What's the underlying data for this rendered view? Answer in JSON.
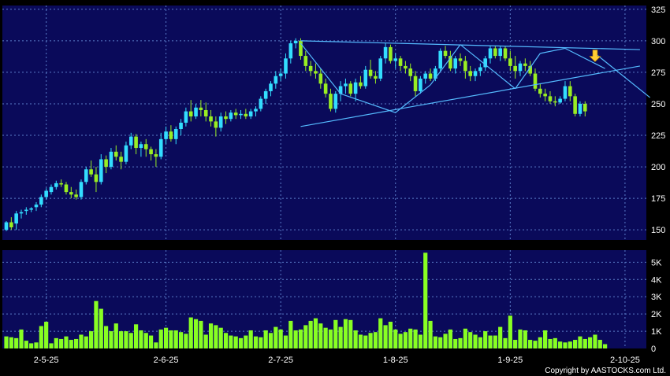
{
  "copyright": "Copyright by AASTOCKS.com Ltd.",
  "colors": {
    "panel_bg": "#0a0a5a",
    "grid": "#5a7cc8",
    "up_candle": "#33ddff",
    "down_candle": "#99ee22",
    "volume": "#88ff22",
    "trendline": "#55bbff",
    "arrow": "#ffcc33",
    "text": "#ffffff"
  },
  "chart_data": [
    {
      "type": "candlestick",
      "title": "",
      "y_ticks": [
        "325",
        "300",
        "275",
        "250",
        "225",
        "200",
        "175",
        "150"
      ],
      "ylim": [
        142,
        328
      ],
      "x_ticks": [
        {
          "label": "2-5-25",
          "index": 8
        },
        {
          "label": "2-6-25",
          "index": 32
        },
        {
          "label": "2-7-25",
          "index": 55
        },
        {
          "label": "1-8-25",
          "index": 78
        },
        {
          "label": "1-9-25",
          "index": 101
        },
        {
          "label": "2-10-25",
          "index": 124
        }
      ],
      "grid": true,
      "candles_ohlc": [
        [
          150,
          157,
          149,
          156
        ],
        [
          156,
          160,
          150,
          152
        ],
        [
          155,
          165,
          150,
          163
        ],
        [
          163,
          166,
          159,
          164
        ],
        [
          165,
          168,
          162,
          166
        ],
        [
          166,
          168,
          164,
          167
        ],
        [
          168,
          172,
          165,
          170
        ],
        [
          170,
          178,
          168,
          176
        ],
        [
          176,
          183,
          174,
          181
        ],
        [
          180,
          186,
          178,
          184
        ],
        [
          184,
          189,
          182,
          187
        ],
        [
          187,
          190,
          184,
          186
        ],
        [
          186,
          188,
          178,
          180
        ],
        [
          180,
          184,
          175,
          178
        ],
        [
          178,
          182,
          174,
          176
        ],
        [
          176,
          190,
          174,
          188
        ],
        [
          188,
          200,
          186,
          198
        ],
        [
          198,
          205,
          192,
          194
        ],
        [
          194,
          200,
          180,
          188
        ],
        [
          188,
          210,
          186,
          206
        ],
        [
          206,
          209,
          195,
          200
        ],
        [
          200,
          215,
          198,
          212
        ],
        [
          212,
          217,
          205,
          208
        ],
        [
          208,
          212,
          198,
          204
        ],
        [
          204,
          220,
          202,
          217
        ],
        [
          217,
          227,
          214,
          224
        ],
        [
          224,
          226,
          210,
          215
        ],
        [
          215,
          220,
          208,
          218
        ],
        [
          218,
          222,
          208,
          214
        ],
        [
          214,
          216,
          205,
          210
        ],
        [
          210,
          214,
          200,
          208
        ],
        [
          208,
          227,
          206,
          222
        ],
        [
          222,
          232,
          218,
          228
        ],
        [
          228,
          233,
          220,
          222
        ],
        [
          222,
          232,
          218,
          230
        ],
        [
          230,
          238,
          225,
          235
        ],
        [
          235,
          247,
          232,
          244
        ],
        [
          244,
          253,
          236,
          240
        ],
        [
          240,
          250,
          238,
          247
        ],
        [
          247,
          253,
          240,
          245
        ],
        [
          245,
          251,
          236,
          240
        ],
        [
          240,
          245,
          232,
          236
        ],
        [
          236,
          240,
          224,
          231
        ],
        [
          231,
          243,
          228,
          240
        ],
        [
          240,
          244,
          234,
          238
        ],
        [
          238,
          245,
          236,
          243
        ],
        [
          243,
          246,
          238,
          241
        ],
        [
          241,
          245,
          238,
          242
        ],
        [
          242,
          246,
          238,
          240
        ],
        [
          240,
          246,
          238,
          244
        ],
        [
          244,
          248,
          240,
          246
        ],
        [
          246,
          256,
          244,
          254
        ],
        [
          254,
          262,
          250,
          260
        ],
        [
          260,
          268,
          256,
          266
        ],
        [
          266,
          276,
          262,
          272
        ],
        [
          272,
          278,
          268,
          274
        ],
        [
          274,
          290,
          270,
          286
        ],
        [
          286,
          300,
          282,
          298
        ],
        [
          298,
          302,
          294,
          300
        ],
        [
          300,
          302,
          285,
          288
        ],
        [
          288,
          292,
          276,
          280
        ],
        [
          280,
          284,
          272,
          276
        ],
        [
          276,
          282,
          270,
          274
        ],
        [
          274,
          278,
          262,
          266
        ],
        [
          266,
          270,
          255,
          258
        ],
        [
          258,
          262,
          244,
          246
        ],
        [
          246,
          260,
          243,
          258
        ],
        [
          258,
          268,
          252,
          264
        ],
        [
          264,
          270,
          258,
          266
        ],
        [
          266,
          268,
          256,
          258
        ],
        [
          258,
          270,
          252,
          267
        ],
        [
          267,
          272,
          262,
          264
        ],
        [
          264,
          280,
          262,
          277
        ],
        [
          277,
          285,
          270,
          272
        ],
        [
          272,
          276,
          266,
          270
        ],
        [
          270,
          288,
          268,
          286
        ],
        [
          286,
          298,
          282,
          295
        ],
        [
          295,
          297,
          282,
          284
        ],
        [
          284,
          290,
          278,
          286
        ],
        [
          286,
          288,
          276,
          280
        ],
        [
          280,
          284,
          274,
          278
        ],
        [
          278,
          282,
          268,
          272
        ],
        [
          272,
          276,
          256,
          260
        ],
        [
          260,
          272,
          258,
          270
        ],
        [
          270,
          276,
          266,
          274
        ],
        [
          274,
          278,
          268,
          270
        ],
        [
          270,
          280,
          268,
          278
        ],
        [
          278,
          294,
          276,
          292
        ],
        [
          292,
          296,
          286,
          288
        ],
        [
          288,
          292,
          276,
          278
        ],
        [
          278,
          288,
          274,
          286
        ],
        [
          286,
          290,
          280,
          284
        ],
        [
          284,
          288,
          270,
          276
        ],
        [
          276,
          280,
          268,
          272
        ],
        [
          272,
          278,
          268,
          276
        ],
        [
          276,
          282,
          272,
          279
        ],
        [
          279,
          288,
          276,
          286
        ],
        [
          286,
          296,
          282,
          294
        ],
        [
          294,
          296,
          286,
          288
        ],
        [
          288,
          296,
          284,
          294
        ],
        [
          294,
          296,
          284,
          286
        ],
        [
          286,
          292,
          276,
          280
        ],
        [
          280,
          288,
          270,
          276
        ],
        [
          276,
          284,
          272,
          282
        ],
        [
          282,
          286,
          276,
          280
        ],
        [
          280,
          284,
          272,
          274
        ],
        [
          274,
          278,
          260,
          262
        ],
        [
          262,
          266,
          255,
          258
        ],
        [
          258,
          262,
          252,
          256
        ],
        [
          256,
          260,
          250,
          252
        ],
        [
          252,
          256,
          248,
          251
        ],
        [
          251,
          256,
          250,
          254
        ],
        [
          254,
          268,
          252,
          264
        ],
        [
          264,
          268,
          252,
          256
        ],
        [
          256,
          258,
          240,
          242
        ],
        [
          242,
          252,
          240,
          250
        ],
        [
          250,
          252,
          240,
          244
        ]
      ],
      "annotations": [
        {
          "type": "trendline",
          "from": [
            59,
            300
          ],
          "to": [
            127,
            293
          ]
        },
        {
          "type": "trendline",
          "from": [
            59,
            298
          ],
          "to": [
            67,
            258
          ]
        },
        {
          "type": "trendline",
          "from": [
            67,
            258
          ],
          "to": [
            78,
            243
          ]
        },
        {
          "type": "trendline",
          "from": [
            78,
            243
          ],
          "to": [
            85,
            265
          ]
        },
        {
          "type": "trendline",
          "from": [
            85,
            265
          ],
          "to": [
            91,
            297
          ]
        },
        {
          "type": "trendline",
          "from": [
            91,
            297
          ],
          "to": [
            102,
            262
          ]
        },
        {
          "type": "trendline",
          "from": [
            102,
            262
          ],
          "to": [
            107,
            290
          ]
        },
        {
          "type": "trendline",
          "from": [
            107,
            290
          ],
          "to": [
            112,
            294
          ]
        },
        {
          "type": "trendline",
          "from": [
            112,
            294
          ],
          "to": [
            120,
            278
          ]
        },
        {
          "type": "trendline",
          "from": [
            118,
            290
          ],
          "to": [
            129,
            255
          ]
        },
        {
          "type": "trendline",
          "from": [
            59,
            232
          ],
          "to": [
            127,
            280
          ]
        },
        {
          "type": "arrow",
          "index": 118,
          "value": 284,
          "direction": "down"
        }
      ]
    },
    {
      "type": "bar",
      "title": "",
      "y_ticks": [
        "5K",
        "4K",
        "3K",
        "2K",
        "1K",
        "0"
      ],
      "ylim": [
        0,
        5700
      ],
      "grid": true,
      "volumes": [
        700,
        650,
        600,
        1100,
        450,
        300,
        350,
        1300,
        1550,
        300,
        600,
        550,
        700,
        500,
        550,
        800,
        700,
        1000,
        2750,
        2300,
        1300,
        1000,
        1450,
        1000,
        1000,
        900,
        1400,
        1050,
        900,
        750,
        350,
        1100,
        1200,
        1050,
        1050,
        950,
        850,
        1800,
        1700,
        1600,
        800,
        1450,
        1350,
        1200,
        900,
        750,
        700,
        600,
        750,
        1050,
        700,
        650,
        1050,
        900,
        1250,
        1100,
        750,
        1600,
        1050,
        1100,
        1350,
        1600,
        1750,
        1450,
        1200,
        1100,
        1650,
        1250,
        1700,
        1650,
        1050,
        800,
        750,
        900,
        950,
        1750,
        1350,
        1550,
        1100,
        850,
        950,
        1150,
        1100,
        800,
        5550,
        1600,
        700,
        650,
        850,
        1100,
        550,
        600,
        1150,
        950,
        800,
        650,
        1000,
        750,
        750,
        1250,
        600,
        1900,
        500,
        1100,
        1050,
        500,
        450,
        650,
        1050,
        550,
        600,
        400,
        350,
        400,
        500,
        700,
        550,
        650,
        800,
        500,
        250
      ]
    }
  ]
}
